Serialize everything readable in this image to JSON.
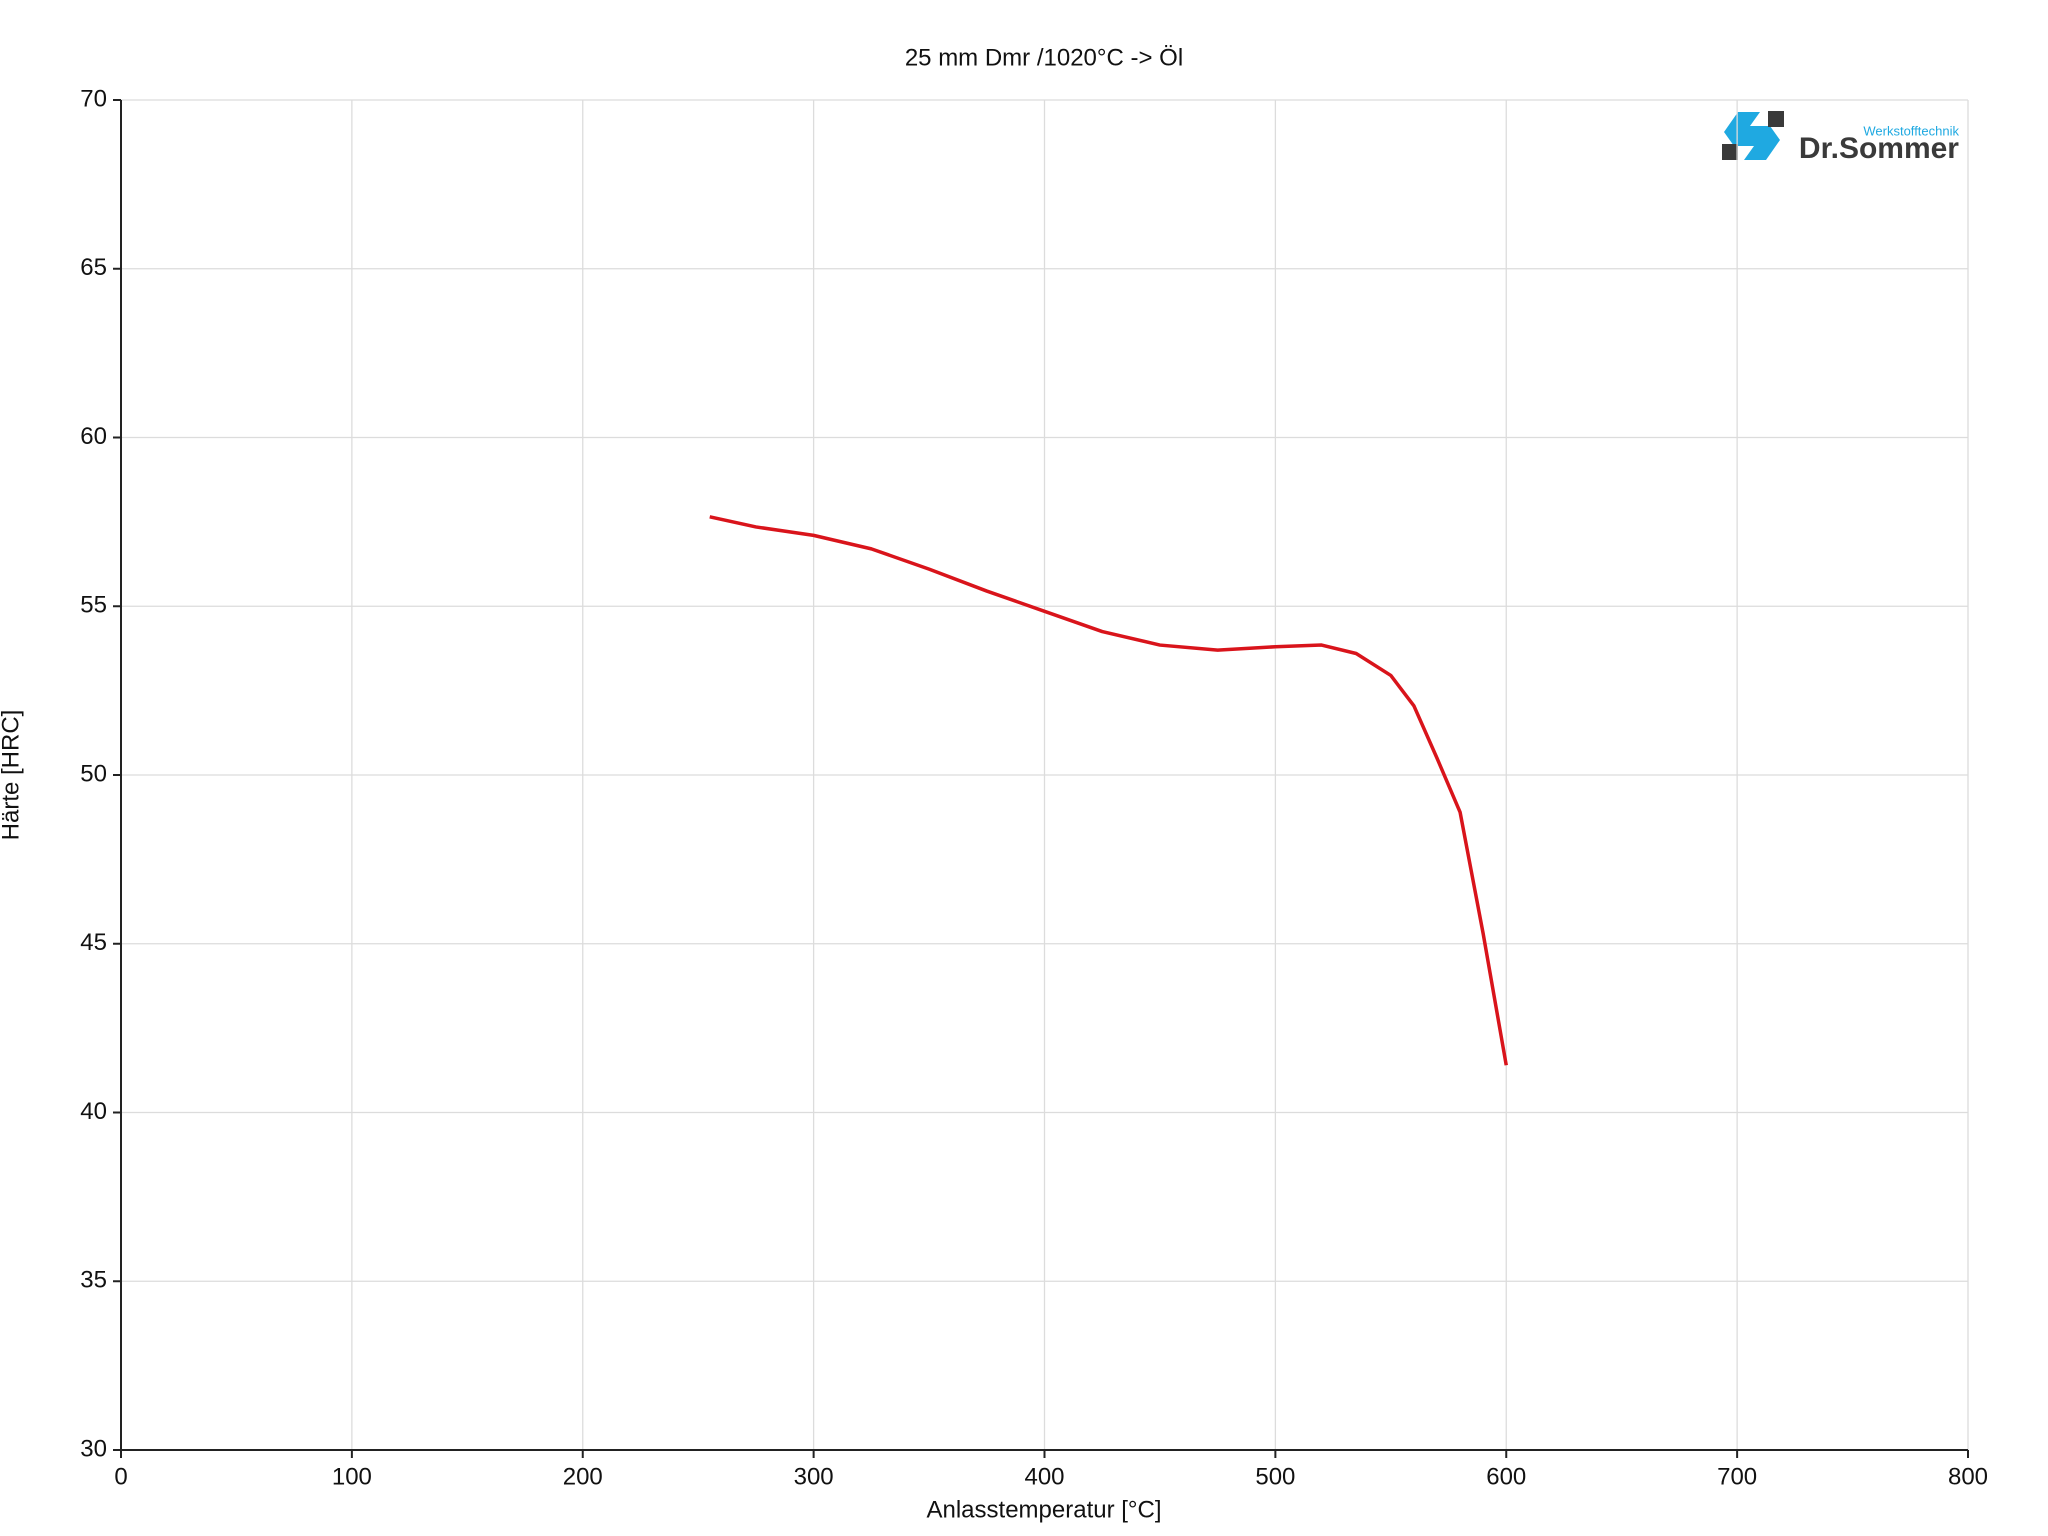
{
  "chart_data": {
    "type": "line",
    "title": "25 mm Dmr /1020°C -> Öl",
    "x_label": "Anlasstemperatur [°C]",
    "y_label": "Härte [HRC]",
    "x": [
      255,
      275,
      300,
      325,
      350,
      375,
      400,
      425,
      450,
      475,
      500,
      520,
      535,
      550,
      560,
      570,
      580,
      590,
      600
    ],
    "series": [
      {
        "name": "25 mm Dmr /1020°C -> Öl",
        "color": "#d9141b",
        "values": [
          57.65,
          57.35,
          57.1,
          56.7,
          56.1,
          55.45,
          54.85,
          54.25,
          53.85,
          53.7,
          53.8,
          53.85,
          53.6,
          52.95,
          52.05,
          50.5,
          48.9,
          45.3,
          41.4
        ]
      }
    ],
    "xlim": [
      0,
      800
    ],
    "ylim": [
      30,
      70
    ],
    "xticks": [
      0,
      100,
      200,
      300,
      400,
      500,
      600,
      700,
      800
    ],
    "yticks": [
      30,
      35,
      40,
      45,
      50,
      55,
      60,
      65,
      70
    ],
    "grid": true
  },
  "logo": {
    "name": "Dr.Sommer",
    "tagline": "Werkstofftechnik"
  }
}
